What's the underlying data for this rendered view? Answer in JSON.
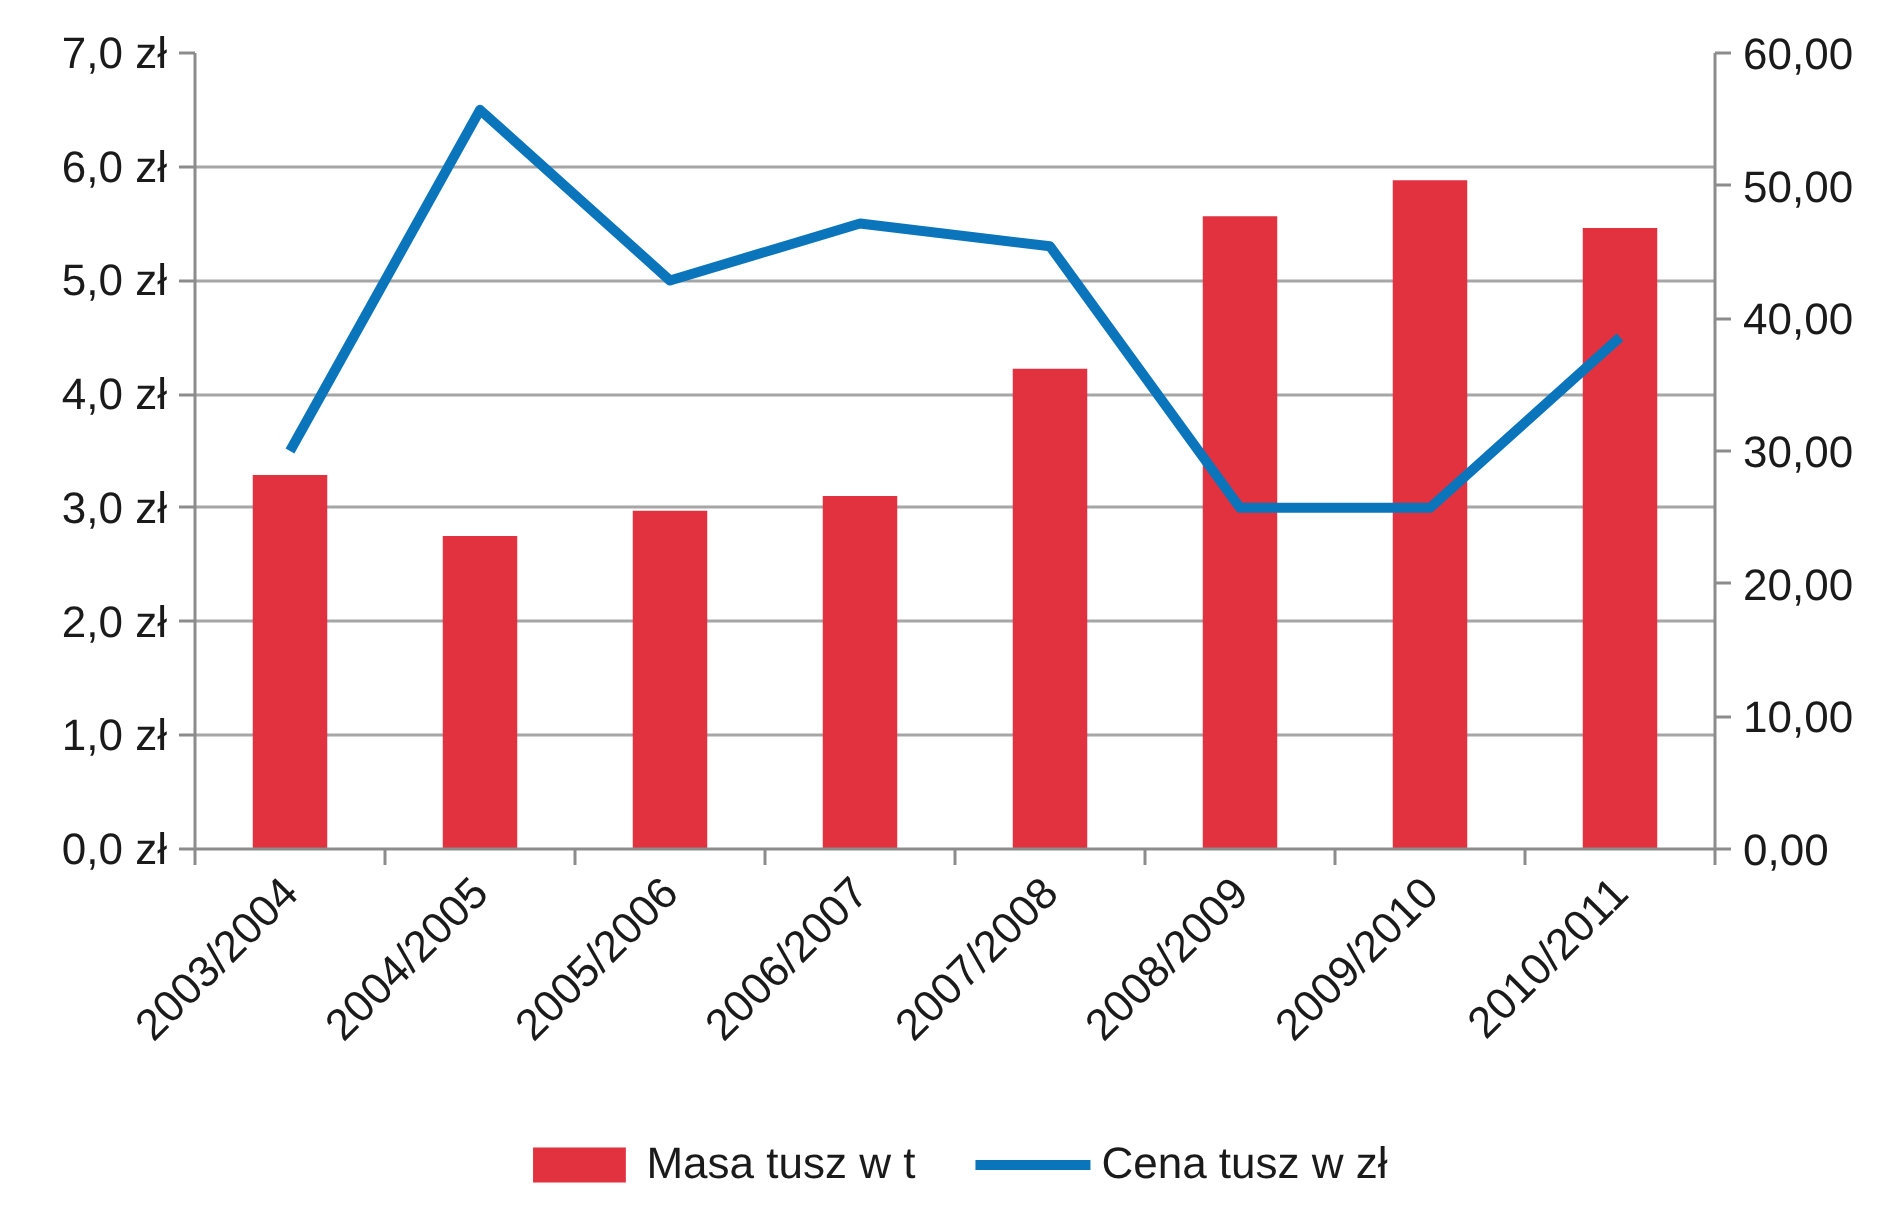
{
  "chart_data": {
    "type": "bar",
    "categories": [
      "2003/2004",
      "2004/2005",
      "2005/2006",
      "2006/2007",
      "2007/2008",
      "2008/2009",
      "2009/2010",
      "2010/2011"
    ],
    "series": [
      {
        "name": "Masa tusz w t",
        "axis": "y2",
        "color": "#e2313f",
        "values": [
          28.2,
          23.6,
          25.5,
          26.6,
          36.2,
          47.7,
          50.4,
          46.8
        ]
      },
      {
        "name": "Cena tusz w zł",
        "type": "line",
        "color": "#0b75bc",
        "values": [
          3.5,
          6.5,
          5.0,
          5.5,
          5.3,
          3.0,
          3.0,
          4.5
        ]
      }
    ],
    "ylim": [
      0,
      7
    ],
    "yticks": [
      {
        "value": 0,
        "label": "0,0 zł"
      },
      {
        "value": 1,
        "label": "1,0 zł"
      },
      {
        "value": 2,
        "label": "2,0 zł"
      },
      {
        "value": 3,
        "label": "3,0 zł"
      },
      {
        "value": 4,
        "label": "4,0 zł"
      },
      {
        "value": 5,
        "label": "5,0 zł"
      },
      {
        "value": 6,
        "label": "6,0 zł"
      },
      {
        "value": 7,
        "label": "7,0 zł"
      }
    ],
    "y2lim": [
      0,
      60
    ],
    "y2ticks": [
      {
        "value": 0,
        "label": "0,00"
      },
      {
        "value": 10,
        "label": "10,00"
      },
      {
        "value": 20,
        "label": "20,00"
      },
      {
        "value": 30,
        "label": "30,00"
      },
      {
        "value": 40,
        "label": "40,00"
      },
      {
        "value": 50,
        "label": "50,00"
      },
      {
        "value": 60,
        "label": "60,00"
      }
    ],
    "grid": "y",
    "legend": "bottom",
    "line_style": "solid"
  }
}
